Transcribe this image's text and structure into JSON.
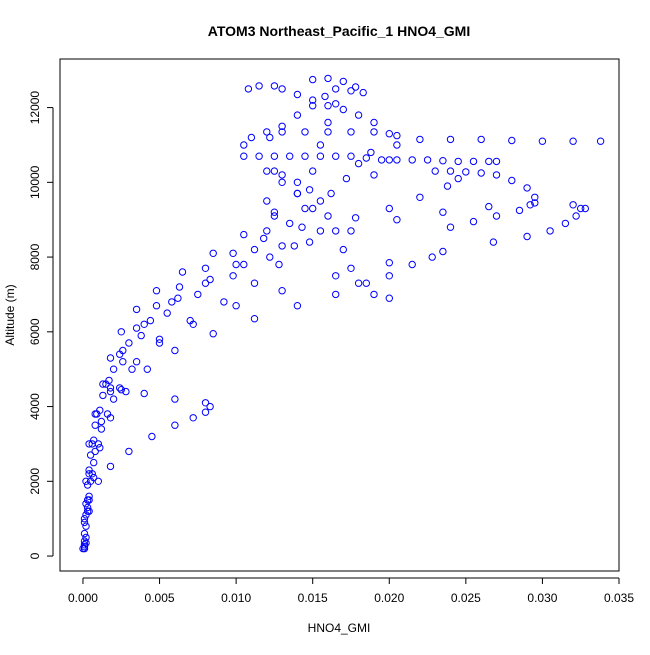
{
  "chart_data": {
    "type": "scatter",
    "title": "ATOM3 Northeast_Pacific_1 HNO4_GMI",
    "xlabel": "HNO4_GMI",
    "ylabel": "Altitude (m)",
    "xlim": [
      -0.0015,
      0.035
    ],
    "ylim": [
      -400,
      13300
    ],
    "x_ticks": [
      0.0,
      0.005,
      0.01,
      0.015,
      0.02,
      0.025,
      0.03,
      0.035
    ],
    "x_tick_labels": [
      "0.000",
      "0.005",
      "0.010",
      "0.015",
      "0.020",
      "0.025",
      "0.030",
      "0.035"
    ],
    "y_ticks": [
      0,
      2000,
      4000,
      6000,
      8000,
      10000,
      12000
    ],
    "y_tick_labels": [
      "0",
      "2000",
      "4000",
      "6000",
      "8000",
      "10000",
      "12000"
    ],
    "grid": false,
    "marker": "open-circle",
    "color": "#0000ff",
    "series": [
      {
        "points": [
          [
            0.0001,
            200
          ],
          [
            0.0002,
            800
          ],
          [
            0.0003,
            1500
          ],
          [
            0.0004,
            2200
          ],
          [
            0.0006,
            3000
          ],
          [
            0.0009,
            3800
          ],
          [
            0.0013,
            4600
          ],
          [
            0.0018,
            5300
          ],
          [
            0.0025,
            6000
          ],
          [
            0.0035,
            6600
          ],
          [
            0.0048,
            7100
          ],
          [
            0.0065,
            7600
          ],
          [
            0.0085,
            8100
          ],
          [
            0.0105,
            8600
          ],
          [
            0.0125,
            9100
          ],
          [
            0.014,
            9700
          ],
          [
            0.015,
            10300
          ],
          [
            0.0155,
            11000
          ],
          [
            0.016,
            11600
          ],
          [
            0.0165,
            12100
          ]
        ]
      },
      {
        "points": [
          [
            0.0001,
            300
          ],
          [
            0.0003,
            1200
          ],
          [
            0.0005,
            2000
          ],
          [
            0.0008,
            2800
          ],
          [
            0.0012,
            3600
          ],
          [
            0.0018,
            4400
          ],
          [
            0.0026,
            5200
          ],
          [
            0.0038,
            5900
          ],
          [
            0.0055,
            6500
          ],
          [
            0.0075,
            7000
          ],
          [
            0.0098,
            7500
          ],
          [
            0.0122,
            8000
          ],
          [
            0.0148,
            8400
          ],
          [
            0.0175,
            8700
          ],
          [
            0.0205,
            9000
          ],
          [
            0.0235,
            9200
          ],
          [
            0.0265,
            9350
          ],
          [
            0.0295,
            9450
          ],
          [
            0.032,
            9400
          ],
          [
            0.0325,
            9300
          ]
        ]
      },
      {
        "points": [
          [
            0.0002,
            500
          ],
          [
            0.0004,
            1500
          ],
          [
            0.0007,
            2500
          ],
          [
            0.0012,
            3400
          ],
          [
            0.002,
            4200
          ],
          [
            0.0032,
            5000
          ],
          [
            0.005,
            5700
          ],
          [
            0.0072,
            6200
          ],
          [
            0.01,
            6700
          ],
          [
            0.013,
            7100
          ],
          [
            0.0165,
            7500
          ],
          [
            0.02,
            7850
          ],
          [
            0.0235,
            8150
          ],
          [
            0.0268,
            8400
          ],
          [
            0.029,
            8550
          ],
          [
            0.0305,
            8700
          ],
          [
            0.0315,
            8900
          ],
          [
            0.0322,
            9100
          ],
          [
            0.0328,
            9300
          ]
        ]
      },
      {
        "points": [
          [
            0.0001,
            900
          ],
          [
            0.0004,
            1600
          ],
          [
            0.001,
            2000
          ],
          [
            0.0018,
            2400
          ],
          [
            0.003,
            2800
          ],
          [
            0.0045,
            3200
          ],
          [
            0.006,
            3500
          ],
          [
            0.0072,
            3700
          ],
          [
            0.008,
            3850
          ],
          [
            0.0083,
            4000
          ],
          [
            0.008,
            4100
          ],
          [
            0.006,
            4200
          ],
          [
            0.004,
            4350
          ],
          [
            0.0025,
            4450
          ],
          [
            0.0018,
            4500
          ]
        ]
      },
      {
        "points": [
          [
            0.0,
            200
          ],
          [
            0.0001,
            1000
          ],
          [
            0.0002,
            2000
          ],
          [
            0.0004,
            3000
          ],
          [
            0.0008,
            3800
          ],
          [
            0.0015,
            4600
          ],
          [
            0.0024,
            5400
          ],
          [
            0.0035,
            6100
          ],
          [
            0.0048,
            6700
          ],
          [
            0.0063,
            7200
          ],
          [
            0.008,
            7700
          ],
          [
            0.0098,
            8100
          ],
          [
            0.0118,
            8500
          ],
          [
            0.0135,
            8900
          ],
          [
            0.015,
            9300
          ],
          [
            0.0162,
            9700
          ],
          [
            0.0172,
            10100
          ],
          [
            0.018,
            10500
          ],
          [
            0.0188,
            10800
          ]
        ]
      },
      {
        "points": [
          [
            0.0001,
            600
          ],
          [
            0.0002,
            1400
          ],
          [
            0.0004,
            2300
          ],
          [
            0.0007,
            3100
          ],
          [
            0.0011,
            3900
          ],
          [
            0.0017,
            4700
          ],
          [
            0.0026,
            5500
          ],
          [
            0.004,
            6200
          ],
          [
            0.0058,
            6800
          ],
          [
            0.008,
            7300
          ],
          [
            0.0105,
            7800
          ],
          [
            0.013,
            8300
          ],
          [
            0.0155,
            8700
          ],
          [
            0.0178,
            9050
          ],
          [
            0.02,
            9300
          ],
          [
            0.022,
            9600
          ],
          [
            0.0238,
            9900
          ],
          [
            0.0245,
            10100
          ]
        ]
      },
      {
        "points": [
          [
            0.0001,
            400
          ],
          [
            0.0003,
            1300
          ],
          [
            0.0006,
            2200
          ],
          [
            0.001,
            3000
          ],
          [
            0.0016,
            3800
          ],
          [
            0.0024,
            4500
          ],
          [
            0.0035,
            5200
          ],
          [
            0.005,
            5800
          ],
          [
            0.007,
            6300
          ],
          [
            0.0092,
            6800
          ],
          [
            0.0112,
            7300
          ],
          [
            0.0128,
            7800
          ],
          [
            0.0138,
            8300
          ],
          [
            0.0143,
            8800
          ],
          [
            0.0145,
            9300
          ],
          [
            0.014,
            9700
          ],
          [
            0.013,
            10000
          ],
          [
            0.0125,
            10300
          ]
        ]
      },
      {
        "points": [
          [
            0.0105,
            10700
          ],
          [
            0.0115,
            10700
          ],
          [
            0.0125,
            10700
          ],
          [
            0.0135,
            10700
          ],
          [
            0.0145,
            10700
          ],
          [
            0.0155,
            10700
          ],
          [
            0.0165,
            10700
          ],
          [
            0.0175,
            10700
          ],
          [
            0.0185,
            10650
          ],
          [
            0.0195,
            10600
          ],
          [
            0.0205,
            10600
          ],
          [
            0.0215,
            10600
          ],
          [
            0.0225,
            10600
          ],
          [
            0.0235,
            10580
          ],
          [
            0.0245,
            10560
          ],
          [
            0.0255,
            10560
          ],
          [
            0.0265,
            10560
          ],
          [
            0.027,
            10560
          ]
        ]
      },
      {
        "points": [
          [
            0.0105,
            11000
          ],
          [
            0.011,
            11200
          ],
          [
            0.012,
            11350
          ],
          [
            0.013,
            11350
          ],
          [
            0.0145,
            11350
          ],
          [
            0.016,
            11350
          ],
          [
            0.0175,
            11350
          ],
          [
            0.019,
            11350
          ],
          [
            0.0205,
            11250
          ],
          [
            0.022,
            11150
          ],
          [
            0.024,
            11150
          ],
          [
            0.026,
            11150
          ],
          [
            0.028,
            11120
          ],
          [
            0.03,
            11100
          ],
          [
            0.032,
            11100
          ],
          [
            0.0338,
            11100
          ]
        ]
      },
      {
        "points": [
          [
            0.0108,
            12500
          ],
          [
            0.0115,
            12580
          ],
          [
            0.0125,
            12580
          ],
          [
            0.013,
            12500
          ],
          [
            0.014,
            12350
          ],
          [
            0.015,
            12200
          ],
          [
            0.016,
            12050
          ],
          [
            0.017,
            11950
          ],
          [
            0.018,
            11800
          ],
          [
            0.019,
            11600
          ],
          [
            0.02,
            11300
          ],
          [
            0.0205,
            11000
          ],
          [
            0.02,
            10600
          ],
          [
            0.019,
            10200
          ]
        ]
      },
      {
        "points": [
          [
            0.015,
            12750
          ],
          [
            0.016,
            12780
          ],
          [
            0.017,
            12700
          ],
          [
            0.0178,
            12550
          ],
          [
            0.0183,
            12400
          ],
          [
            0.0175,
            12450
          ],
          [
            0.0165,
            12500
          ],
          [
            0.0158,
            12300
          ],
          [
            0.015,
            12050
          ],
          [
            0.014,
            11800
          ],
          [
            0.013,
            11500
          ],
          [
            0.0122,
            11200
          ]
        ]
      },
      {
        "points": [
          [
            0.023,
            10300
          ],
          [
            0.024,
            10300
          ],
          [
            0.025,
            10280
          ],
          [
            0.026,
            10250
          ],
          [
            0.027,
            10200
          ],
          [
            0.028,
            10050
          ],
          [
            0.029,
            9850
          ],
          [
            0.0295,
            9600
          ],
          [
            0.0292,
            9400
          ],
          [
            0.0285,
            9250
          ],
          [
            0.027,
            9100
          ],
          [
            0.0255,
            8950
          ],
          [
            0.024,
            8800
          ]
        ]
      },
      {
        "points": [
          [
            0.012,
            10300
          ],
          [
            0.013,
            10200
          ],
          [
            0.014,
            10000
          ],
          [
            0.0148,
            9800
          ],
          [
            0.0155,
            9500
          ],
          [
            0.016,
            9100
          ],
          [
            0.0165,
            8700
          ],
          [
            0.017,
            8200
          ],
          [
            0.0175,
            7700
          ],
          [
            0.018,
            7300
          ],
          [
            0.019,
            7000
          ],
          [
            0.02,
            6900
          ]
        ]
      },
      {
        "points": [
          [
            0.0001,
            250
          ],
          [
            0.0002,
            1100
          ],
          [
            0.0003,
            1900
          ],
          [
            0.0005,
            2700
          ],
          [
            0.0008,
            3500
          ],
          [
            0.0013,
            4300
          ],
          [
            0.002,
            5000
          ],
          [
            0.003,
            5700
          ],
          [
            0.0044,
            6300
          ],
          [
            0.0062,
            6900
          ],
          [
            0.0083,
            7400
          ],
          [
            0.01,
            7800
          ],
          [
            0.0112,
            8200
          ],
          [
            0.012,
            8700
          ],
          [
            0.0125,
            9200
          ],
          [
            0.012,
            9500
          ]
        ]
      },
      {
        "points": [
          [
            0.0002,
            350
          ],
          [
            0.0004,
            1200
          ],
          [
            0.0007,
            2100
          ],
          [
            0.0011,
            2900
          ],
          [
            0.0018,
            3700
          ],
          [
            0.0028,
            4400
          ],
          [
            0.0042,
            5000
          ],
          [
            0.006,
            5500
          ],
          [
            0.0085,
            5950
          ],
          [
            0.0112,
            6350
          ],
          [
            0.014,
            6700
          ],
          [
            0.0165,
            7000
          ],
          [
            0.0185,
            7300
          ],
          [
            0.02,
            7500
          ],
          [
            0.0215,
            7800
          ],
          [
            0.0228,
            8000
          ]
        ]
      }
    ]
  }
}
